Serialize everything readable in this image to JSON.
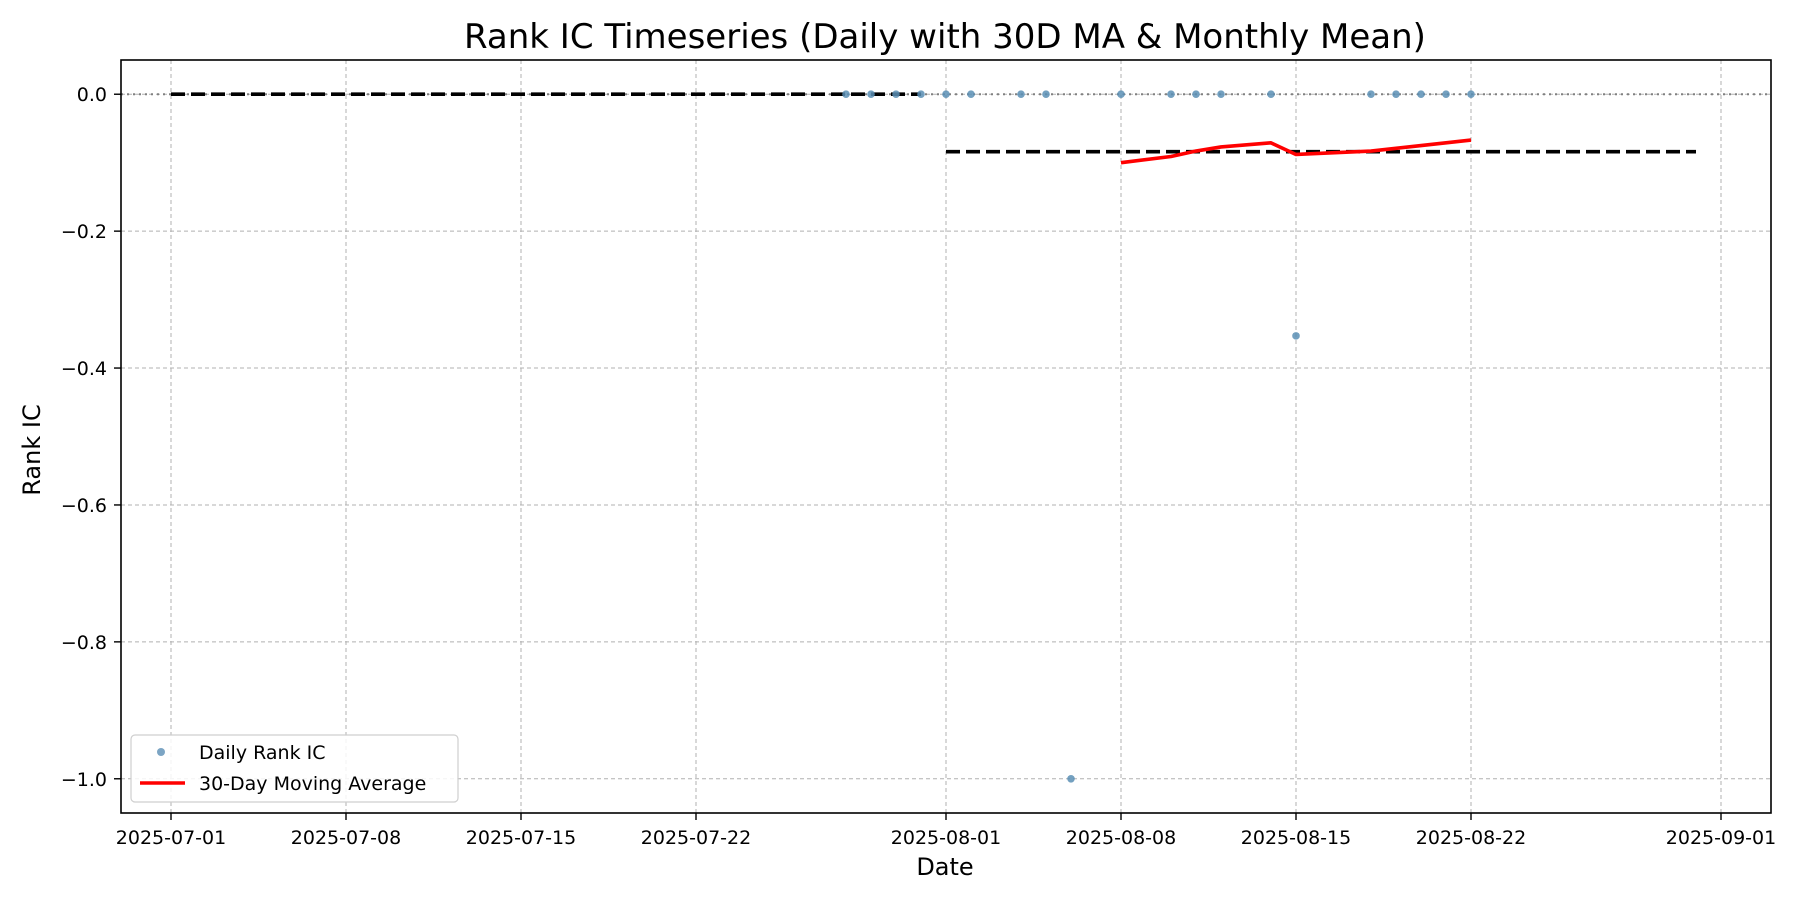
{
  "chart_data": {
    "type": "line",
    "title": "Rank IC Timeseries (Daily with 30D MA & Monthly Mean)",
    "xlabel": "Date",
    "ylabel": "Rank IC",
    "xlim": [
      "2025-06-29",
      "2025-09-03"
    ],
    "ylim": [
      -1.05,
      0.05
    ],
    "x_ticks": [
      "2025-07-01",
      "2025-07-08",
      "2025-07-15",
      "2025-07-22",
      "2025-08-01",
      "2025-08-08",
      "2025-08-15",
      "2025-08-22",
      "2025-09-01"
    ],
    "y_ticks": [
      0.0,
      -0.2,
      -0.4,
      -0.6,
      -0.8,
      -1.0
    ],
    "y_tick_labels": [
      "0.0",
      "−0.2",
      "−0.4",
      "−0.6",
      "−0.8",
      "−1.0"
    ],
    "grid": true,
    "legend": "lower-left",
    "series": [
      {
        "name": "Daily Rank IC",
        "kind": "scatter",
        "color": "#5b8fb5",
        "points": [
          {
            "x": "2025-07-28",
            "y": 0.0
          },
          {
            "x": "2025-07-29",
            "y": 0.0
          },
          {
            "x": "2025-07-30",
            "y": 0.0
          },
          {
            "x": "2025-07-31",
            "y": 0.0
          },
          {
            "x": "2025-08-01",
            "y": 0.0
          },
          {
            "x": "2025-08-02",
            "y": 0.0
          },
          {
            "x": "2025-08-04",
            "y": 0.0
          },
          {
            "x": "2025-08-05",
            "y": 0.0
          },
          {
            "x": "2025-08-06",
            "y": -1.0
          },
          {
            "x": "2025-08-08",
            "y": 0.0
          },
          {
            "x": "2025-08-10",
            "y": 0.0
          },
          {
            "x": "2025-08-11",
            "y": 0.0
          },
          {
            "x": "2025-08-12",
            "y": 0.0
          },
          {
            "x": "2025-08-14",
            "y": 0.0
          },
          {
            "x": "2025-08-15",
            "y": -0.353
          },
          {
            "x": "2025-08-18",
            "y": 0.0
          },
          {
            "x": "2025-08-19",
            "y": 0.0
          },
          {
            "x": "2025-08-20",
            "y": 0.0
          },
          {
            "x": "2025-08-21",
            "y": 0.0
          },
          {
            "x": "2025-08-22",
            "y": 0.0
          }
        ]
      },
      {
        "name": "30-Day Moving Average",
        "kind": "line",
        "color": "#ff0000",
        "points": [
          {
            "x": "2025-08-08",
            "y": -0.1
          },
          {
            "x": "2025-08-10",
            "y": -0.091
          },
          {
            "x": "2025-08-11",
            "y": -0.083
          },
          {
            "x": "2025-08-12",
            "y": -0.077
          },
          {
            "x": "2025-08-14",
            "y": -0.071
          },
          {
            "x": "2025-08-15",
            "y": -0.088
          },
          {
            "x": "2025-08-18",
            "y": -0.083
          },
          {
            "x": "2025-08-19",
            "y": -0.079
          },
          {
            "x": "2025-08-20",
            "y": -0.075
          },
          {
            "x": "2025-08-21",
            "y": -0.071
          },
          {
            "x": "2025-08-22",
            "y": -0.067
          }
        ]
      },
      {
        "kind": "dashed-segment",
        "color": "#000000",
        "points": [
          {
            "x": "2025-07-01",
            "y": 0.0
          },
          {
            "x": "2025-07-31",
            "y": 0.0
          }
        ]
      },
      {
        "kind": "dashed-segment",
        "color": "#000000",
        "points": [
          {
            "x": "2025-08-01",
            "y": -0.084
          },
          {
            "x": "2025-08-31",
            "y": -0.084
          }
        ]
      }
    ],
    "reference_line": {
      "y": 0.0,
      "style": "dotted",
      "color": "#808080"
    }
  }
}
